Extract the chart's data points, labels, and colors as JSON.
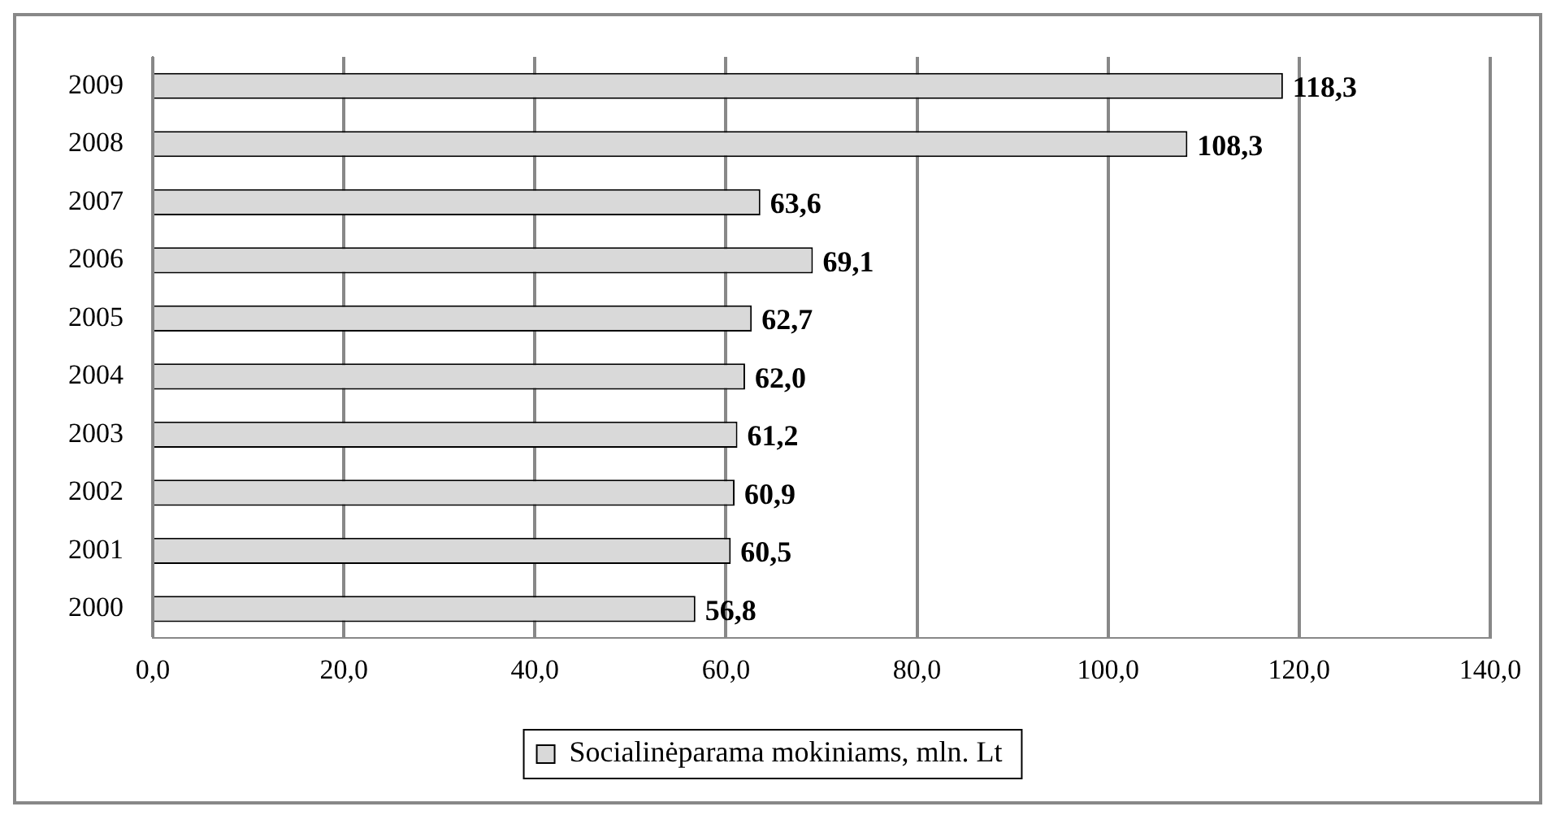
{
  "chart_data": {
    "type": "bar",
    "orientation": "horizontal",
    "categories": [
      "2009",
      "2008",
      "2007",
      "2006",
      "2005",
      "2004",
      "2003",
      "2002",
      "2001",
      "2000"
    ],
    "series": [
      {
        "name": "Socialinėparama mokiniams, mln. Lt",
        "color": "#d9d9d9",
        "values": [
          118.3,
          108.3,
          63.6,
          69.1,
          62.7,
          62.0,
          61.2,
          60.9,
          60.5,
          56.8
        ],
        "value_labels": [
          "118,3",
          "108,3",
          "63,6",
          "69,1",
          "62,7",
          "62,0",
          "61,2",
          "60,9",
          "60,5",
          "56,8"
        ]
      }
    ],
    "xlim": [
      0,
      140
    ],
    "xticks": [
      {
        "value": 0,
        "label": "0,0"
      },
      {
        "value": 20,
        "label": "20,0"
      },
      {
        "value": 40,
        "label": "40,0"
      },
      {
        "value": 60,
        "label": "60,0"
      },
      {
        "value": 80,
        "label": "80,0"
      },
      {
        "value": 100,
        "label": "100,0"
      },
      {
        "value": 120,
        "label": "120,0"
      },
      {
        "value": 140,
        "label": "140,0"
      }
    ],
    "grid": "x",
    "legend": "bottom"
  }
}
